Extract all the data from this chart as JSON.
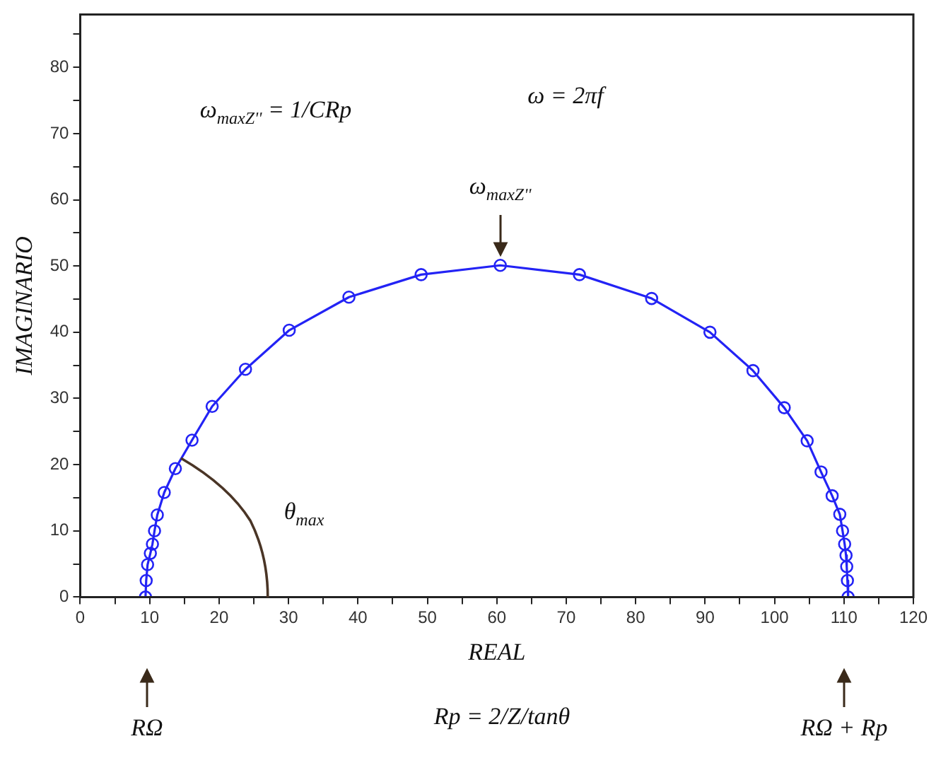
{
  "chart_data": {
    "type": "line",
    "xlabel": "REAL",
    "ylabel": "IMAGINARIO",
    "x": [
      9.4,
      9.5,
      9.7,
      10.1,
      10.4,
      10.7,
      11.1,
      12.1,
      13.7,
      16.1,
      19.0,
      23.8,
      30.1,
      38.7,
      49.1,
      60.5,
      71.9,
      82.3,
      90.7,
      96.9,
      101.4,
      104.7,
      106.7,
      108.3,
      109.4,
      109.8,
      110.1,
      110.3,
      110.4,
      110.5,
      110.6
    ],
    "values": [
      0,
      2.5,
      4.9,
      6.6,
      8.0,
      10.0,
      12.4,
      15.8,
      19.4,
      23.7,
      28.8,
      34.4,
      40.3,
      45.3,
      48.7,
      50.1,
      48.7,
      45.1,
      40.0,
      34.2,
      28.6,
      23.6,
      18.9,
      15.3,
      12.5,
      10.0,
      8.0,
      6.3,
      4.6,
      2.5,
      0
    ],
    "color": "#2323f5",
    "marker": "circle",
    "line_style": "solid",
    "grid": false,
    "legend": false,
    "xlim": [
      0,
      120
    ],
    "ylim": [
      0,
      88
    ],
    "xticks": [
      0,
      {
        "value": 5,
        "label": null
      },
      10,
      {
        "value": 15,
        "label": null
      },
      20,
      {
        "value": 25,
        "label": null
      },
      30,
      {
        "value": 35,
        "label": null
      },
      40,
      {
        "value": 45,
        "label": null
      },
      50,
      {
        "value": 55,
        "label": null
      },
      60,
      {
        "value": 65,
        "label": null
      },
      70,
      {
        "value": 75,
        "label": null
      },
      80,
      {
        "value": 85,
        "label": null
      },
      90,
      {
        "value": 95,
        "label": null
      },
      100,
      {
        "value": 105,
        "label": null
      },
      110,
      {
        "value": 115,
        "label": null
      },
      120
    ],
    "yticks": [
      0,
      {
        "value": 5,
        "label": null
      },
      10,
      {
        "value": 15,
        "label": null
      },
      20,
      {
        "value": 25,
        "label": null
      },
      30,
      {
        "value": 35,
        "label": null
      },
      40,
      {
        "value": 45,
        "label": null
      },
      50,
      {
        "value": 55,
        "label": null
      },
      60,
      {
        "value": 65,
        "label": null
      },
      70,
      {
        "value": 75,
        "label": null
      },
      80,
      {
        "value": 85,
        "label": null
      }
    ],
    "annotations": [
      "ω$_{maxZ''}$ = 1/CRp",
      "ω = 2πf",
      "θ$_{max}$",
      "Rp = 2/Z/tanθ",
      {
        "text": "ω$_{maxZ''}$",
        "x": 60.5,
        "y": 50.1
      },
      "RΩ",
      "RΩ + Rp"
    ]
  }
}
